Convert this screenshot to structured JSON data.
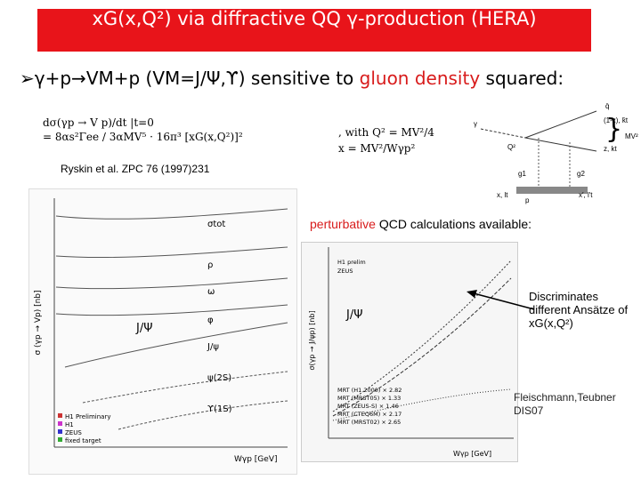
{
  "header": {
    "title": "xG(x,Q²) via diffractive QQ̄ γ-production (HERA)"
  },
  "bullet": {
    "marker": "➢",
    "lead": "γ+p→VM+p (VM=J/Ψ,ϒ) sensitive to ",
    "highlight": "gluon density",
    "tail": " squared:"
  },
  "formula": {
    "lhs": "dσ(γp → V p)/dt |t=0",
    "rhs": "= 8αs²Γee / 3αMV⁵ · 16π³ [xG(x,Q²)]²",
    "with": ", with",
    "q2": "Q² = MV²/4",
    "x": "x = MV²/Wγp²"
  },
  "diagram": {
    "labels": [
      "q̄",
      "(1-z), k̄t",
      "Q²",
      "z, kt",
      "g1",
      "g2",
      "x, lt",
      "x′, l′t",
      "p",
      "MV²",
      "γ"
    ]
  },
  "reference": "Ryskin et al. ZPC 76 (1997)231",
  "left_plot": {
    "y_label": "σ (γp → Vp) [nb]",
    "x_label": "Wγp [GeV]",
    "curve_labels": [
      "σtot",
      "ρ",
      "ω",
      "φ",
      "J/ψ",
      "ψ(2S)",
      "ϒ(1S)"
    ],
    "legend": [
      "H1 Preliminary",
      "H1",
      "ZEUS",
      "fixed target"
    ],
    "jpsi_label": "J/Ψ"
  },
  "note": {
    "highlight": "perturbative",
    "text": " QCD calculations available:"
  },
  "right_plot": {
    "y_label": "σ(γp → J/ψp) [nb]",
    "x_label": "Wγp [GeV]",
    "jpsi_label": "J/Ψ",
    "legend": [
      "H1 prelim",
      "ZEUS",
      "MRT (H1 2000) × 2.82",
      "MRT (MRST05) × 1.33",
      "MRT (ZEUS-S) × 1.46",
      "MRT (CTEQ6M) × 2.17",
      "MRT (MRST02) × 2.65"
    ]
  },
  "annotation": "Discriminates different Ansätze of xG(x,Q²)",
  "citation": "Fleischmann,Teubner DIS07"
}
